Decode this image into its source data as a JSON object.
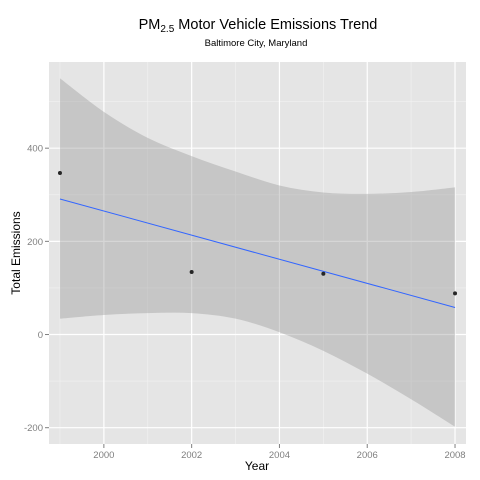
{
  "chart_data": {
    "type": "scatter",
    "title": {
      "main": "PM",
      "subscript": "2.5",
      "rest": " Motor Vehicle Emissions Trend"
    },
    "subtitle": "Baltimore City, Maryland",
    "xlabel": "Year",
    "ylabel": "Total Emissions",
    "xlim": [
      1998.75,
      2008.25
    ],
    "ylim": [
      -235,
      585
    ],
    "x_ticks": [
      2000,
      2002,
      2004,
      2006,
      2008
    ],
    "y_ticks": [
      -200,
      0,
      200,
      400
    ],
    "points": [
      {
        "x": 1999,
        "y": 346.8
      },
      {
        "x": 2002,
        "y": 134.3
      },
      {
        "x": 2005,
        "y": 130.4
      },
      {
        "x": 2008,
        "y": 88.3
      }
    ],
    "trend_line": {
      "method": "linear",
      "from": {
        "x": 1999,
        "y": 291
      },
      "to": {
        "x": 2008,
        "y": 58
      }
    },
    "confidence_band": {
      "x": [
        1999,
        2000,
        2001,
        2002,
        2003,
        2004,
        2005,
        2006,
        2007,
        2008
      ],
      "upper": [
        550,
        478,
        422,
        383,
        350,
        320,
        305,
        302,
        306,
        316
      ],
      "lower": [
        34,
        42,
        46,
        46,
        34,
        5,
        -35,
        -84,
        -139,
        -198
      ]
    },
    "grid": true,
    "colors": {
      "panel_background": "#e5e5e5",
      "grid_major": "#ffffff",
      "grid_minor": "#f2f2f2",
      "band_fill": "#999999",
      "trend_line": "#3366ff",
      "point": "#262626"
    }
  }
}
